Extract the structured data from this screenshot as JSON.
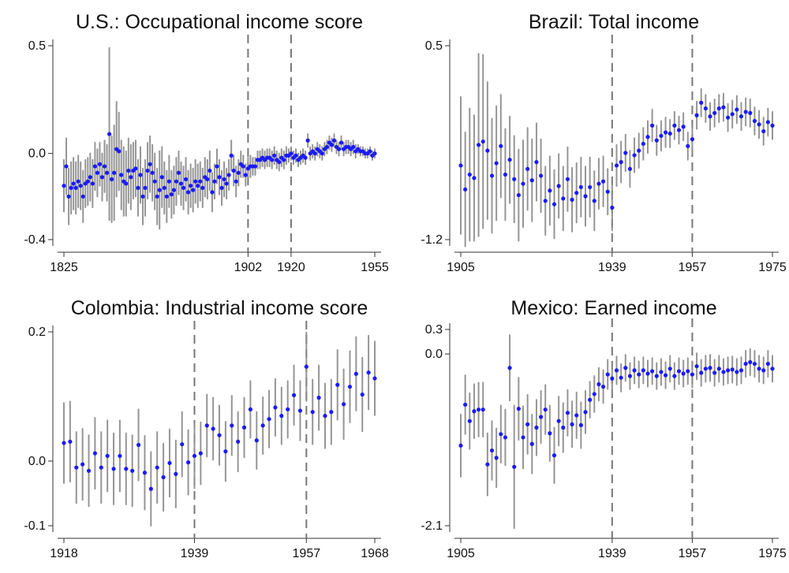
{
  "chart_data": [
    {
      "id": "us",
      "type": "scatter",
      "title": "U.S.: Occupational income score",
      "xlim": [
        1825,
        1955
      ],
      "ylim": [
        -0.4,
        0.5
      ],
      "xticks": [
        1825,
        1902,
        1920,
        1955
      ],
      "yticks": [
        0.5,
        0.0,
        -0.4
      ],
      "ytick_labels": [
        "0.5",
        "0.0",
        "-0.4"
      ],
      "vlines": [
        1902,
        1920
      ],
      "x_step": 1,
      "x_start": 1825,
      "y": [
        -0.15,
        -0.06,
        -0.2,
        -0.16,
        -0.14,
        -0.16,
        -0.13,
        -0.15,
        -0.2,
        -0.14,
        -0.13,
        -0.11,
        -0.14,
        -0.06,
        -0.09,
        -0.05,
        -0.11,
        -0.06,
        -0.09,
        0.09,
        -0.12,
        -0.09,
        0.02,
        0.01,
        -0.1,
        -0.13,
        -0.14,
        -0.08,
        -0.11,
        -0.08,
        -0.07,
        -0.16,
        -0.1,
        -0.2,
        -0.16,
        -0.08,
        -0.05,
        -0.09,
        -0.13,
        -0.2,
        -0.17,
        -0.11,
        -0.16,
        -0.2,
        -0.13,
        -0.19,
        -0.17,
        -0.13,
        -0.09,
        -0.14,
        -0.16,
        -0.12,
        -0.18,
        -0.15,
        -0.17,
        -0.13,
        -0.15,
        -0.13,
        -0.16,
        -0.11,
        -0.12,
        -0.08,
        -0.18,
        -0.13,
        -0.06,
        -0.11,
        -0.16,
        -0.12,
        -0.14,
        -0.1,
        -0.01,
        -0.08,
        -0.13,
        -0.09,
        -0.05,
        -0.06,
        -0.1,
        -0.07,
        -0.06,
        -0.06,
        -0.06,
        -0.03,
        -0.03,
        -0.02,
        -0.03,
        -0.02,
        -0.02,
        -0.03,
        -0.01,
        -0.03,
        -0.04,
        -0.02,
        -0.03,
        -0.01,
        -0.01,
        0.0,
        -0.02,
        -0.01,
        -0.03,
        -0.02,
        -0.01,
        -0.02,
        0.06,
        0.0,
        0.01,
        0.0,
        0.02,
        0.01,
        0.0,
        0.02,
        0.03,
        0.05,
        0.04,
        0.06,
        0.03,
        0.02,
        0.05,
        0.02,
        0.03,
        0.03,
        0.02,
        0.03,
        0.01,
        0.02,
        0.01,
        0.01,
        0.0,
        0.0,
        0.01,
        -0.01,
        0.0
      ],
      "ci_halfwidth": [
        0.12,
        0.13,
        0.13,
        0.12,
        0.12,
        0.12,
        0.12,
        0.11,
        0.12,
        0.11,
        0.11,
        0.11,
        0.11,
        0.11,
        0.11,
        0.1,
        0.11,
        0.12,
        0.13,
        0.4,
        0.2,
        0.22,
        0.22,
        0.18,
        0.16,
        0.16,
        0.15,
        0.15,
        0.15,
        0.13,
        0.13,
        0.13,
        0.13,
        0.13,
        0.13,
        0.13,
        0.13,
        0.13,
        0.13,
        0.13,
        0.18,
        0.14,
        0.12,
        0.12,
        0.12,
        0.11,
        0.11,
        0.11,
        0.1,
        0.1,
        0.1,
        0.1,
        0.1,
        0.1,
        0.1,
        0.1,
        0.1,
        0.09,
        0.09,
        0.09,
        0.09,
        0.09,
        0.09,
        0.08,
        0.08,
        0.08,
        0.08,
        0.08,
        0.07,
        0.07,
        0.07,
        0.07,
        0.07,
        0.06,
        0.06,
        0.05,
        0.05,
        0.05,
        0.05,
        0.04,
        0.04,
        0.04,
        0.04,
        0.04,
        0.04,
        0.04,
        0.04,
        0.04,
        0.04,
        0.04,
        0.04,
        0.04,
        0.04,
        0.04,
        0.03,
        0.03,
        0.03,
        0.03,
        0.03,
        0.03,
        0.03,
        0.03,
        0.03,
        0.03,
        0.03,
        0.03,
        0.03,
        0.03,
        0.03,
        0.03,
        0.03,
        0.03,
        0.03,
        0.03,
        0.03,
        0.03,
        0.03,
        0.03,
        0.03,
        0.03,
        0.03,
        0.03,
        0.03,
        0.02,
        0.02,
        0.02,
        0.02,
        0.02,
        0.02,
        0.02,
        0.02
      ]
    },
    {
      "id": "brazil",
      "type": "scatter",
      "title": "Brazil: Total income",
      "xlim": [
        1905,
        1975
      ],
      "ylim": [
        -1.2,
        0.5
      ],
      "xticks": [
        1905,
        1939,
        1957,
        1975
      ],
      "yticks": [
        0.5,
        -1.2
      ],
      "ytick_labels": [
        "0.5",
        "-1.2"
      ],
      "vlines": [
        1939,
        1957
      ],
      "x_step": 1,
      "x_start": 1905,
      "y": [
        -0.55,
        -0.76,
        -0.63,
        -0.66,
        -0.37,
        -0.34,
        -0.42,
        -0.64,
        -0.53,
        -0.38,
        -0.63,
        -0.5,
        -0.67,
        -0.81,
        -0.71,
        -0.58,
        -0.68,
        -0.52,
        -0.64,
        -0.86,
        -0.77,
        -0.89,
        -0.73,
        -0.84,
        -0.67,
        -0.85,
        -0.79,
        -0.74,
        -0.82,
        -0.74,
        -0.86,
        -0.71,
        -0.69,
        -0.78,
        -0.92,
        -0.55,
        -0.52,
        -0.44,
        -0.58,
        -0.46,
        -0.42,
        -0.36,
        -0.3,
        -0.2,
        -0.33,
        -0.29,
        -0.26,
        -0.27,
        -0.2,
        -0.24,
        -0.21,
        -0.38,
        -0.32,
        -0.11,
        0.0,
        -0.05,
        -0.12,
        -0.09,
        -0.05,
        -0.04,
        -0.13,
        -0.1,
        -0.06,
        -0.12,
        -0.08,
        -0.09,
        -0.16,
        -0.19,
        -0.25,
        -0.17,
        -0.2
      ],
      "ci_halfwidth": [
        0.6,
        0.5,
        0.58,
        0.55,
        0.8,
        0.76,
        0.6,
        0.5,
        0.5,
        0.45,
        0.4,
        0.38,
        0.38,
        0.4,
        0.38,
        0.36,
        0.36,
        0.34,
        0.32,
        0.3,
        0.3,
        0.3,
        0.28,
        0.28,
        0.28,
        0.28,
        0.26,
        0.26,
        0.26,
        0.26,
        0.26,
        0.22,
        0.22,
        0.2,
        0.2,
        0.18,
        0.18,
        0.16,
        0.16,
        0.15,
        0.15,
        0.14,
        0.14,
        0.14,
        0.13,
        0.13,
        0.13,
        0.12,
        0.12,
        0.12,
        0.12,
        0.12,
        0.12,
        0.12,
        0.12,
        0.12,
        0.12,
        0.12,
        0.12,
        0.12,
        0.12,
        0.12,
        0.12,
        0.12,
        0.12,
        0.12,
        0.12,
        0.12,
        0.12,
        0.12,
        0.12
      ]
    },
    {
      "id": "colombia",
      "type": "scatter",
      "title": "Colombia: Industrial income score",
      "xlim": [
        1918,
        1968
      ],
      "ylim": [
        -0.1,
        0.2
      ],
      "xticks": [
        1918,
        1939,
        1957,
        1968
      ],
      "yticks": [
        0.2,
        0.0,
        -0.1
      ],
      "ytick_labels": [
        "0.2",
        "0.0",
        "-0.1"
      ],
      "vlines": [
        1939,
        1957
      ],
      "x_step": 1,
      "x_start": 1918,
      "y": [
        0.028,
        0.03,
        -0.01,
        -0.005,
        -0.015,
        0.012,
        -0.01,
        0.008,
        -0.012,
        0.008,
        -0.012,
        -0.015,
        0.025,
        -0.018,
        -0.043,
        -0.01,
        -0.025,
        -0.003,
        -0.02,
        0.026,
        -0.002,
        0.008,
        0.012,
        0.055,
        0.05,
        0.04,
        0.015,
        0.055,
        0.03,
        0.052,
        0.08,
        0.032,
        0.055,
        0.065,
        0.083,
        0.07,
        0.08,
        0.102,
        0.078,
        0.146,
        0.076,
        0.098,
        0.07,
        0.076,
        0.118,
        0.088,
        0.115,
        0.135,
        0.103,
        0.137,
        0.128
      ],
      "ci_halfwidth": [
        0.062,
        0.062,
        0.055,
        0.055,
        0.055,
        0.055,
        0.055,
        0.055,
        0.055,
        0.055,
        0.055,
        0.055,
        0.055,
        0.057,
        0.057,
        0.055,
        0.052,
        0.052,
        0.052,
        0.05,
        0.05,
        0.05,
        0.048,
        0.048,
        0.048,
        0.046,
        0.046,
        0.046,
        0.046,
        0.046,
        0.044,
        0.044,
        0.044,
        0.044,
        0.044,
        0.044,
        0.044,
        0.046,
        0.046,
        0.053,
        0.05,
        0.05,
        0.05,
        0.05,
        0.054,
        0.054,
        0.055,
        0.057,
        0.057,
        0.057,
        0.057
      ]
    },
    {
      "id": "mexico",
      "type": "scatter",
      "title": "Mexico: Earned income",
      "xlim": [
        1905,
        1975
      ],
      "ylim": [
        -2.1,
        0.3
      ],
      "xticks": [
        1905,
        1939,
        1957,
        1975
      ],
      "yticks": [
        0.3,
        0.0,
        -2.1
      ],
      "ytick_labels": [
        "0.3",
        "0.0",
        "-2.1"
      ],
      "vlines": [
        1939,
        1957
      ],
      "x_step": 1,
      "x_start": 1905,
      "y": [
        -1.12,
        -0.62,
        -0.82,
        -0.7,
        -0.68,
        -0.68,
        -1.35,
        -1.18,
        -1.27,
        -0.98,
        -1.02,
        -0.17,
        -1.38,
        -0.67,
        -1.02,
        -0.86,
        -1.1,
        -0.9,
        -0.77,
        -0.68,
        -0.97,
        -1.24,
        -0.82,
        -0.9,
        -0.72,
        -0.86,
        -0.75,
        -0.87,
        -0.71,
        -0.56,
        -0.49,
        -0.37,
        -0.4,
        -0.25,
        -0.3,
        -0.2,
        -0.29,
        -0.17,
        -0.27,
        -0.2,
        -0.25,
        -0.2,
        -0.24,
        -0.21,
        -0.27,
        -0.22,
        -0.26,
        -0.18,
        -0.27,
        -0.21,
        -0.24,
        -0.21,
        -0.25,
        -0.15,
        -0.23,
        -0.18,
        -0.17,
        -0.23,
        -0.18,
        -0.22,
        -0.2,
        -0.19,
        -0.22,
        -0.2,
        -0.12,
        -0.1,
        -0.12,
        -0.18,
        -0.2,
        -0.12,
        -0.18
      ],
      "ci_halfwidth": [
        0.38,
        0.36,
        0.34,
        0.33,
        0.33,
        0.33,
        0.38,
        0.36,
        0.36,
        0.35,
        0.34,
        0.4,
        0.75,
        0.38,
        0.38,
        0.36,
        0.36,
        0.34,
        0.32,
        0.3,
        0.34,
        0.34,
        0.3,
        0.3,
        0.28,
        0.28,
        0.28,
        0.28,
        0.26,
        0.22,
        0.22,
        0.2,
        0.2,
        0.18,
        0.18,
        0.17,
        0.17,
        0.16,
        0.16,
        0.16,
        0.16,
        0.16,
        0.16,
        0.16,
        0.16,
        0.16,
        0.16,
        0.16,
        0.16,
        0.16,
        0.16,
        0.16,
        0.16,
        0.16,
        0.16,
        0.16,
        0.16,
        0.16,
        0.16,
        0.16,
        0.16,
        0.16,
        0.16,
        0.16,
        0.16,
        0.16,
        0.16,
        0.16,
        0.16,
        0.16,
        0.16
      ]
    }
  ]
}
